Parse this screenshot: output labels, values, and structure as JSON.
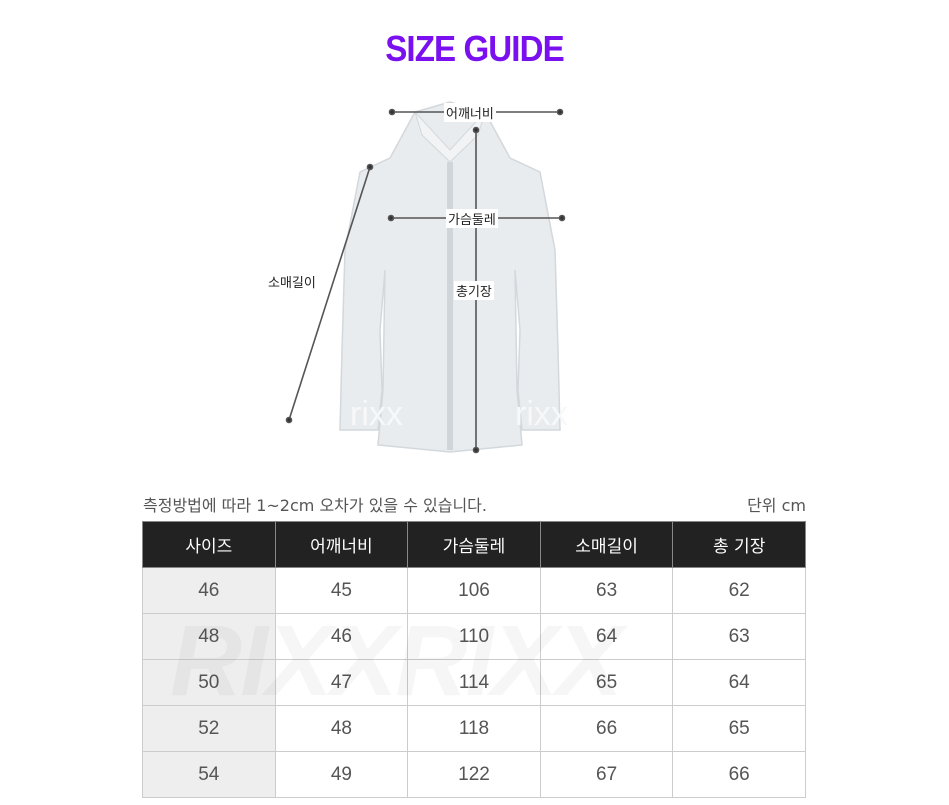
{
  "title": "SIZE GUIDE",
  "diagram": {
    "shoulder": "어깨너비",
    "chest": "가슴둘레",
    "sleeve": "소매길이",
    "length": "총기장",
    "image_watermark": "rixx"
  },
  "note": "측정방법에 따라 1~2cm 오차가 있을 수 있습니다.",
  "unit": "단위 cm",
  "table": {
    "headers": [
      "사이즈",
      "어깨너비",
      "가슴둘레",
      "소매길이",
      "총 기장"
    ],
    "rows": [
      [
        "46",
        "45",
        "106",
        "63",
        "62"
      ],
      [
        "48",
        "46",
        "110",
        "64",
        "63"
      ],
      [
        "50",
        "47",
        "114",
        "65",
        "64"
      ],
      [
        "52",
        "48",
        "118",
        "66",
        "65"
      ],
      [
        "54",
        "49",
        "122",
        "67",
        "66"
      ]
    ],
    "watermark": "RIXXRIXX"
  },
  "colors": {
    "accent": "#7a10f0",
    "header_bg": "#222222",
    "size_col_bg": "#eeeeee"
  }
}
